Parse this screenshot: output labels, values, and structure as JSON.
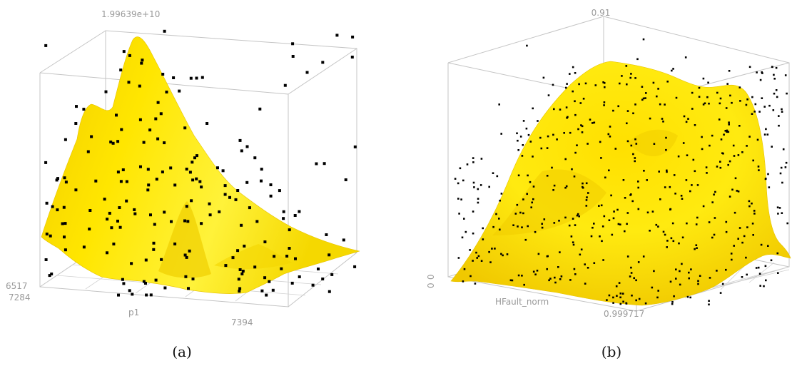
{
  "chart_data": [
    {
      "type": "surface3d",
      "caption": "(a)",
      "z_top_label": "1.99639e+10",
      "x_label": "p1",
      "left_tick_1": "6517",
      "left_tick_2": "7284",
      "right_tick": "7394",
      "surface_color": "#ffe600",
      "point_color": "#000000",
      "grid": true,
      "points_shown": 200
    },
    {
      "type": "surface3d",
      "caption": "(b)",
      "z_top_label": "0.91",
      "x_label": "HFault_norm",
      "left_tick_1": "0",
      "left_tick_2": "0",
      "right_tick": "0.999717",
      "surface_color": "#ffe600",
      "point_color": "#000000",
      "grid": true,
      "points_shown": 520
    }
  ]
}
